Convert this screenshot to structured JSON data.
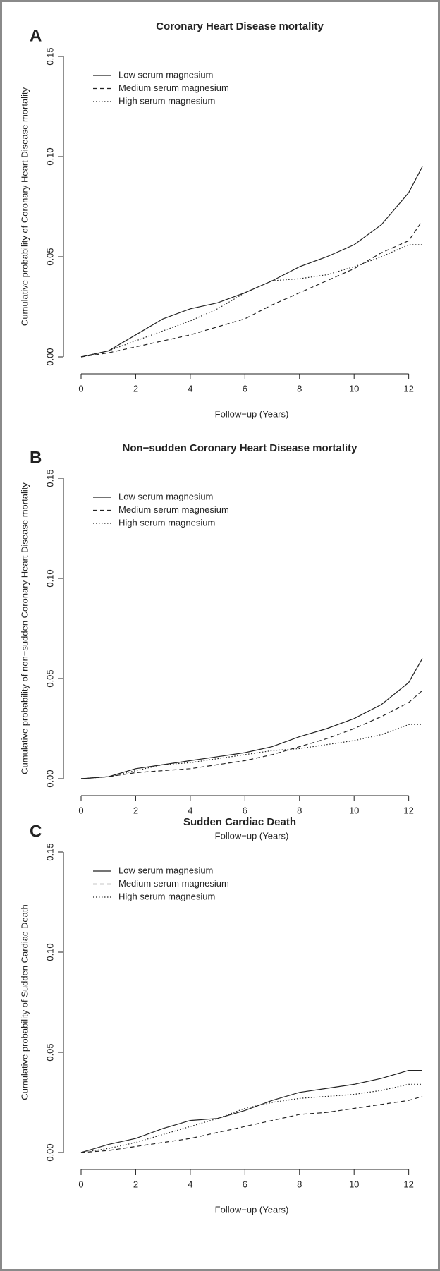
{
  "chart_data": [
    {
      "type": "line",
      "panel": "A",
      "title": "Coronary Heart Disease mortality",
      "y_label": "Cumulative probability of Coronary Heart Disease mortality",
      "x_label": "Follow−up (Years)",
      "x": [
        0,
        1,
        2,
        3,
        4,
        5,
        6,
        7,
        8,
        9,
        10,
        11,
        12,
        12.5
      ],
      "series": [
        {
          "name": "Low serum magnesium",
          "color": "#222222",
          "linestyle": "solid",
          "values": [
            0,
            0.003,
            0.011,
            0.019,
            0.024,
            0.027,
            0.032,
            0.038,
            0.045,
            0.05,
            0.056,
            0.066,
            0.082,
            0.095
          ]
        },
        {
          "name": "Medium serum magnesium",
          "color": "#222222",
          "linestyle": "dashed",
          "values": [
            0,
            0.002,
            0.005,
            0.008,
            0.011,
            0.015,
            0.019,
            0.026,
            0.032,
            0.038,
            0.044,
            0.052,
            0.058,
            0.068
          ]
        },
        {
          "name": "High serum magnesium",
          "color": "#222222",
          "linestyle": "dotted",
          "values": [
            0,
            0.003,
            0.008,
            0.013,
            0.018,
            0.024,
            0.032,
            0.038,
            0.039,
            0.041,
            0.045,
            0.05,
            0.056,
            0.056
          ]
        }
      ],
      "xlim": [
        0,
        12.5
      ],
      "xticks": [
        0,
        2,
        4,
        6,
        8,
        10,
        12
      ],
      "ylim": [
        0,
        0.15
      ],
      "yticks": [
        {
          "value": 0,
          "label": "0.00"
        },
        0.05,
        {
          "value": 0.1,
          "label": "0.10"
        },
        0.15
      ],
      "legend": "top-left"
    },
    {
      "type": "line",
      "panel": "B",
      "title": "Non−sudden Coronary Heart Disease mortality",
      "y_label": "Cumulative probability of non−sudden Coronary Heart Disease mortality",
      "x_label": "Follow−up (Years)",
      "x": [
        0,
        1,
        2,
        3,
        4,
        5,
        6,
        7,
        8,
        9,
        10,
        11,
        12,
        12.5
      ],
      "series": [
        {
          "name": "Low serum magnesium",
          "color": "#222222",
          "linestyle": "solid",
          "values": [
            0,
            0.001,
            0.005,
            0.007,
            0.009,
            0.011,
            0.013,
            0.016,
            0.021,
            0.025,
            0.03,
            0.037,
            0.048,
            0.06
          ]
        },
        {
          "name": "Medium serum magnesium",
          "color": "#222222",
          "linestyle": "dashed",
          "values": [
            0,
            0.001,
            0.003,
            0.004,
            0.005,
            0.007,
            0.009,
            0.012,
            0.016,
            0.02,
            0.025,
            0.031,
            0.038,
            0.044
          ]
        },
        {
          "name": "High serum magnesium",
          "color": "#222222",
          "linestyle": "dotted",
          "values": [
            0,
            0.001,
            0.004,
            0.007,
            0.008,
            0.01,
            0.012,
            0.014,
            0.015,
            0.017,
            0.019,
            0.022,
            0.027,
            0.027
          ]
        }
      ],
      "xlim": [
        0,
        12.5
      ],
      "xticks": [
        0,
        2,
        4,
        6,
        8,
        10,
        12
      ],
      "ylim": [
        0,
        0.15
      ],
      "yticks": [
        {
          "value": 0,
          "label": "0.00"
        },
        0.05,
        {
          "value": 0.1,
          "label": "0.10"
        },
        0.15
      ],
      "legend": "top-left"
    },
    {
      "type": "line",
      "panel": "C",
      "title": "Sudden Cardiac Death",
      "y_label": "Cumulative probability of Sudden Cardiac Death",
      "x_label": "Follow−up (Years)",
      "x": [
        0,
        1,
        2,
        3,
        4,
        5,
        6,
        7,
        8,
        9,
        10,
        11,
        12,
        12.5
      ],
      "series": [
        {
          "name": "Low serum magnesium",
          "color": "#222222",
          "linestyle": "solid",
          "values": [
            0,
            0.004,
            0.007,
            0.012,
            0.016,
            0.017,
            0.021,
            0.026,
            0.03,
            0.032,
            0.034,
            0.037,
            0.041,
            0.041
          ]
        },
        {
          "name": "Medium serum magnesium",
          "color": "#222222",
          "linestyle": "dashed",
          "values": [
            0,
            0.001,
            0.003,
            0.005,
            0.007,
            0.01,
            0.013,
            0.016,
            0.019,
            0.02,
            0.022,
            0.024,
            0.026,
            0.028
          ]
        },
        {
          "name": "High serum magnesium",
          "color": "#222222",
          "linestyle": "dotted",
          "values": [
            0,
            0.002,
            0.005,
            0.009,
            0.013,
            0.017,
            0.022,
            0.025,
            0.027,
            0.028,
            0.029,
            0.031,
            0.034,
            0.034
          ]
        }
      ],
      "xlim": [
        0,
        12.5
      ],
      "xticks": [
        0,
        2,
        4,
        6,
        8,
        10,
        12
      ],
      "ylim": [
        0,
        0.15
      ],
      "yticks": [
        {
          "value": 0,
          "label": "0.00"
        },
        0.05,
        {
          "value": 0.1,
          "label": "0.10"
        },
        0.15
      ],
      "legend": "top-left"
    }
  ]
}
